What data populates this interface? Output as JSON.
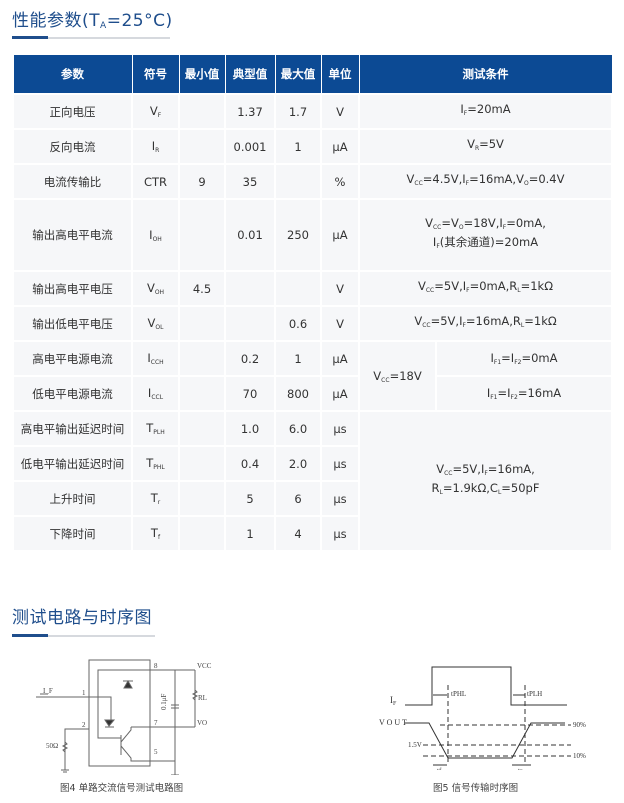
{
  "section1": {
    "title_prefix": "性能参数(T",
    "title_sub": "A",
    "title_suffix": "=25°C)"
  },
  "table": {
    "headers": [
      "参数",
      "符号",
      "最小值",
      "典型值",
      "最大值",
      "单位",
      "测试条件"
    ],
    "rows": [
      {
        "param": "正向电压",
        "symbol": "V_{F}",
        "min": "",
        "typ": "1.37",
        "max": "1.7",
        "unit": "V",
        "cond": "I_{F}=20mA"
      },
      {
        "param": "反向电流",
        "symbol": "I_{R}",
        "min": "",
        "typ": "0.001",
        "max": "1",
        "unit": "μA",
        "cond": "V_{R}=5V"
      },
      {
        "param": "电流传输比",
        "symbol": "CTR",
        "min": "9",
        "typ": "35",
        "max": "",
        "unit": "%",
        "cond": "V_{CC}=4.5V,I_{F}=16mA,V_{O}=0.4V"
      },
      {
        "param": "输出高电平电流",
        "symbol": "I_{OH}",
        "min": "",
        "typ": "0.01",
        "max": "250",
        "unit": "μA",
        "cond": "V_{CC}=V_{O}=18V,I_{F}=0mA,|I_{F}(其余通道)=20mA"
      },
      {
        "param": "输出高电平电压",
        "symbol": "V_{OH}",
        "min": "4.5",
        "typ": "",
        "max": "",
        "unit": "V",
        "cond": "V_{CC}=5V,I_{F}=0mA,R_{L}=1kΩ"
      },
      {
        "param": "输出低电平电压",
        "symbol": "V_{OL}",
        "min": "",
        "typ": "",
        "max": "0.6",
        "unit": "V",
        "cond": "V_{CC}=5V,I_{F}=16mA,R_{L}=1kΩ"
      },
      {
        "param": "高电平电源电流",
        "symbol": "I_{CCH}",
        "min": "",
        "typ": "0.2",
        "max": "1",
        "unit": "μA",
        "cond": "I_{F1}=I_{F2}=0mA"
      },
      {
        "param": "低电平电源电流",
        "symbol": "I_{CCL}",
        "min": "",
        "typ": "70",
        "max": "800",
        "unit": "μA",
        "cond": "I_{F1}=I_{F2}=16mA"
      },
      {
        "param": "高电平输出延迟时间",
        "symbol": "T_{PLH}",
        "min": "",
        "typ": "1.0",
        "max": "6.0",
        "unit": "μs"
      },
      {
        "param": "低电平输出延迟时间",
        "symbol": "T_{PHL}",
        "min": "",
        "typ": "0.4",
        "max": "2.0",
        "unit": "μs"
      },
      {
        "param": "上升时间",
        "symbol": "T_{r}",
        "min": "",
        "typ": "5",
        "max": "6",
        "unit": "μs"
      },
      {
        "param": "下降时间",
        "symbol": "T_{f}",
        "min": "",
        "typ": "1",
        "max": "4",
        "unit": "μs"
      }
    ],
    "icc_shared_cond": "V_{CC}=18V",
    "timing_shared_cond": "V_{CC}=5V,I_{F}=16mA,|R_{L}=1.9kΩ,C_{L}=50pF"
  },
  "section2": {
    "title": "测试电路与时序图"
  },
  "figure4": {
    "caption": "图4 单路交流信号测试电路图",
    "labels": {
      "if": "I_F",
      "pin1": "1",
      "pin2": "2",
      "pin8": "8",
      "pin7": "7",
      "pin5": "5",
      "vcc": "VCC",
      "vo": "VO",
      "rl": "RL",
      "cap": "0.1μF",
      "r50": "50Ω"
    }
  },
  "figure5": {
    "caption": "图5 信号传输时序图",
    "labels": {
      "if": "I",
      "if_sub": "F",
      "vout": "V O U T",
      "tphl": "tPHL",
      "tplh": "tPLH",
      "v15": "1.5V",
      "p90": "90%",
      "p10": "10%",
      "tf": "tf",
      "tr": "tr"
    }
  },
  "colors": {
    "accent": "#0c4a94",
    "heading": "#1f4e8c",
    "row_bg": "#f6f7f9"
  }
}
